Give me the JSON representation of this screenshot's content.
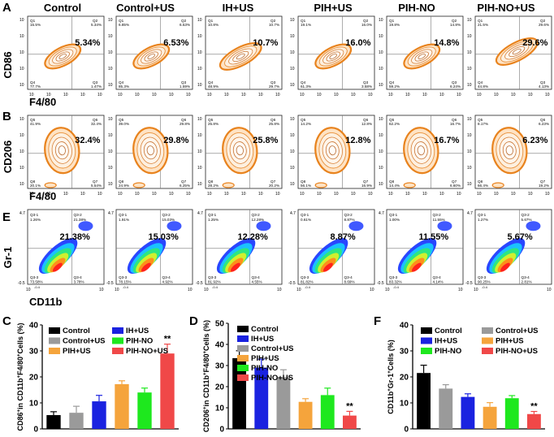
{
  "headers": [
    "Control",
    "Control+US",
    "IH+US",
    "PIH+US",
    "PIH-NO",
    "PIH-NO+US"
  ],
  "panel_letters": {
    "a": "A",
    "b": "B",
    "e": "E",
    "c": "C",
    "d": "D",
    "f": "F"
  },
  "ticks": {
    "t0": "10",
    "t1": "0",
    "t2": "1",
    "t3": "2",
    "t4": "3",
    "t5": "4",
    "t6": "5",
    "e_hi": "4.7",
    "e_lo": "-0.5",
    "e_x0": "10",
    "e_x1": "-0.4"
  },
  "flow_a": {
    "xlabel": "F4/80",
    "ylabel": "CD86",
    "quadrants": [
      "Q1",
      "Q2",
      "Q3",
      "Q4"
    ],
    "panels": [
      {
        "pct": "5.34%",
        "q1": "15.5%",
        "q2": "5.34%",
        "q3": "1.47%",
        "q4": "77.7%"
      },
      {
        "pct": "6.53%",
        "q1": "6.85%",
        "q2": "6.53%",
        "q3": "1.59%",
        "q4": "85.3%"
      },
      {
        "pct": "10.7%",
        "q1": "10.8%",
        "q2": "10.7%",
        "q3": "29.7%",
        "q4": "48.9%"
      },
      {
        "pct": "16.0%",
        "q1": "19.1%",
        "q2": "16.0%",
        "q3": "3.58%",
        "q4": "61.3%"
      },
      {
        "pct": "14.8%",
        "q1": "19.8%",
        "q2": "14.8%",
        "q3": "6.24%",
        "q4": "59.2%"
      },
      {
        "pct": "29.6%",
        "q1": "21.5%",
        "q2": "29.6%",
        "q3": "4.13%",
        "q4": "44.8%"
      }
    ]
  },
  "flow_b": {
    "xlabel": "F4/80",
    "ylabel": "CD206",
    "quadrants": [
      "Q5",
      "Q6",
      "Q7",
      "Q8"
    ],
    "panels": [
      {
        "pct": "32.4%",
        "q5": "41.9%",
        "q6": "32.4%",
        "q7": "5.54%",
        "q8": "20.1%"
      },
      {
        "pct": "29.8%",
        "q5": "39.0%",
        "q6": "29.8%",
        "q7": "6.25%",
        "q8": "24.9%"
      },
      {
        "pct": "25.8%",
        "q5": "25.8%",
        "q6": "25.8%",
        "q7": "20.2%",
        "q8": "28.2%"
      },
      {
        "pct": "12.8%",
        "q5": "14.2%",
        "q6": "12.8%",
        "q7": "16.9%",
        "q8": "56.1%"
      },
      {
        "pct": "16.7%",
        "q5": "62.2%",
        "q6": "16.7%",
        "q7": "6.60%",
        "q8": "14.4%"
      },
      {
        "pct": "6.23%",
        "q5": "8.17%",
        "q6": "6.23%",
        "q7": "19.2%",
        "q8": "66.4%"
      }
    ]
  },
  "flow_e": {
    "xlabel": "CD11b",
    "ylabel": "Gr-1",
    "quadrants": [
      "Q3-1",
      "Q3-2",
      "Q3-3",
      "Q3-4"
    ],
    "panels": [
      {
        "pct": "21.38%",
        "q1": "1.26%",
        "q2": "21.38%",
        "q3": "73.58%",
        "q4": "3.78%"
      },
      {
        "pct": "15.03%",
        "q1": "1.91%",
        "q2": "15.03%",
        "q3": "78.15%",
        "q4": "4.92%"
      },
      {
        "pct": "12.28%",
        "q1": "1.25%",
        "q2": "12.28%",
        "q3": "81.92%",
        "q4": "4.55%"
      },
      {
        "pct": "8.87%",
        "q1": "0.61%",
        "q2": "8.87%",
        "q3": "81.82%",
        "q4": "8.69%"
      },
      {
        "pct": "11.55%",
        "q1": "1.00%",
        "q2": "11.55%",
        "q3": "83.32%",
        "q4": "4.14%"
      },
      {
        "pct": "5.67%",
        "q1": "1.27%",
        "q2": "5.67%",
        "q3": "90.25%",
        "q4": "2.81%"
      }
    ]
  },
  "colors": {
    "Control": "#000000",
    "IH+US": "#1a22e0",
    "Control+US": "#9a9a9a",
    "PIH+US": "#f5a43c",
    "PIH-NO": "#1ee81e",
    "PIH-NO+US": "#f04848"
  },
  "chart_data": [
    {
      "type": "bar",
      "panel": "C",
      "ylabel": "CD86+ in CD11b+F4/80+Cells (%)",
      "ylabel_main": "CD86",
      "ylabel_sup1": "+",
      "ylabel_mid1": "in CD11b",
      "ylabel_sup2": "+",
      "ylabel_mid2": "F4/80",
      "ylabel_sup3": "+",
      "ylabel_end": "Cells (%)",
      "ylim": [
        0,
        40
      ],
      "yticks": [
        "0",
        "10",
        "20",
        "30",
        "40"
      ],
      "categories": [
        "Control",
        "Control+US",
        "IH+US",
        "PIH+US",
        "PIH-NO",
        "PIH-NO+US"
      ],
      "values": [
        5.3,
        6.2,
        10.6,
        17.2,
        14.0,
        29.0
      ],
      "errors": [
        1.3,
        2.5,
        2.3,
        1.3,
        1.7,
        3.6
      ],
      "legend": [
        "Control",
        "IH+US",
        "Control+US",
        "PIH-NO",
        "PIH+US",
        "PIH-NO+US"
      ],
      "significance": "**"
    },
    {
      "type": "bar",
      "panel": "D",
      "ylabel": "CD206+ in CD11b+F4/80+Cells (%)",
      "ylabel_main": "CD206",
      "ylabel_sup1": "+",
      "ylabel_mid1": "in CD11b",
      "ylabel_sup2": "+",
      "ylabel_mid2": "F4/80",
      "ylabel_sup3": "+",
      "ylabel_end": "Cells (%)",
      "ylim": [
        0,
        50
      ],
      "yticks": [
        "0",
        "10",
        "20",
        "30",
        "40",
        "50"
      ],
      "categories": [
        "Control",
        "IH+US",
        "Control+US",
        "PIH+US",
        "PIH-NO",
        "PIH-NO+US"
      ],
      "values": [
        33.5,
        29.0,
        24.5,
        12.8,
        16.0,
        6.3
      ],
      "errors": [
        3.5,
        4.0,
        3.5,
        1.5,
        3.3,
        2.0
      ],
      "legend": [
        "Control",
        "IH+US",
        "Control+US",
        "PIH+US",
        "PIH-NO",
        "PIH-NO+US"
      ],
      "significance": "**"
    },
    {
      "type": "bar",
      "panel": "F",
      "ylabel": "CD11b+Gr-1+Cells (%)",
      "ylabel_main": "CD11b",
      "ylabel_sup1": "+",
      "ylabel_mid1": "Gr-1",
      "ylabel_sup2": "+",
      "ylabel_end": "Cells (%)",
      "ylim": [
        0,
        40
      ],
      "yticks": [
        "0",
        "10",
        "20",
        "30",
        "40"
      ],
      "categories": [
        "Control",
        "Control+US",
        "IH+US",
        "PIH+US",
        "PIH-NO",
        "PIH-NO+US"
      ],
      "values": [
        21.5,
        15.5,
        12.3,
        8.5,
        11.8,
        5.7
      ],
      "errors": [
        3.0,
        1.5,
        1.2,
        1.6,
        1.0,
        1.0
      ],
      "legend": [
        "Control",
        "Control+US",
        "IH+US",
        "PIH+US",
        "PIH-NO",
        "PIH-NO+US"
      ],
      "significance": "**"
    }
  ]
}
